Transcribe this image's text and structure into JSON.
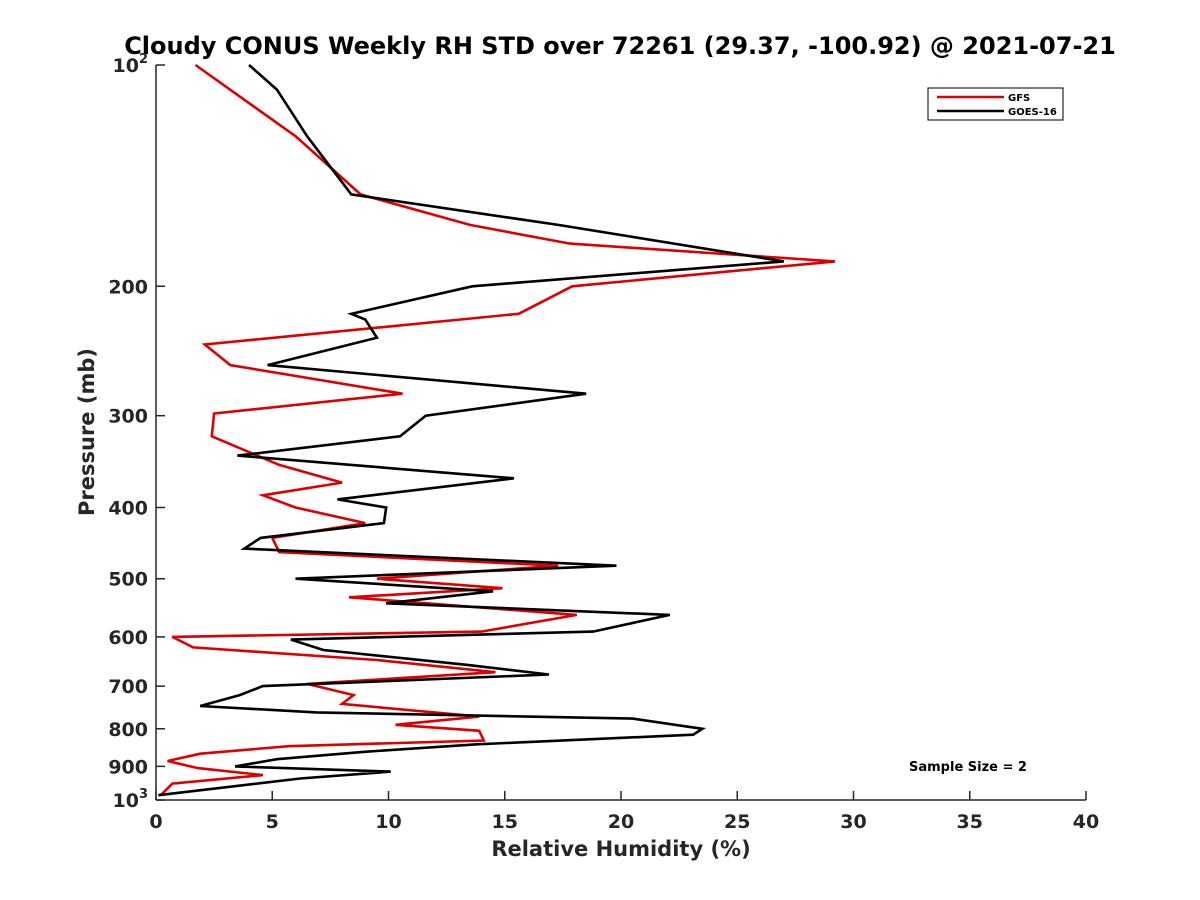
{
  "chart_data": {
    "type": "line",
    "title": "Cloudy CONUS Weekly RH STD over 72261 (29.37, -100.92) @ 2021-07-21",
    "xlabel": "Relative Humidity (%)",
    "ylabel": "Pressure (mb)",
    "xlim": [
      0,
      40
    ],
    "ylim": [
      100,
      1000
    ],
    "y_scale": "log",
    "y_reversed": true,
    "grid": false,
    "legend_position": "top-right",
    "x_ticks": [
      "0",
      "5",
      "10",
      "15",
      "20",
      "25",
      "30",
      "35",
      "40"
    ],
    "y_ticks": [
      {
        "base": "10",
        "exp": "2"
      },
      {
        "text": "200"
      },
      {
        "text": "300"
      },
      {
        "text": "400"
      },
      {
        "text": "500"
      },
      {
        "text": "600"
      },
      {
        "text": "700"
      },
      {
        "text": "800"
      },
      {
        "text": "900"
      },
      {
        "base": "10",
        "exp": "3"
      }
    ],
    "annotation": "Sample Size = 2",
    "series": [
      {
        "name": "GFS",
        "color": "#dd0000",
        "x": [
          1.7,
          6.0,
          8.8,
          13.5,
          17.8,
          29.2,
          17.9,
          15.6,
          2.1,
          3.2,
          10.6,
          2.5,
          2.4,
          5.3,
          8.0,
          4.6,
          6.0,
          9.0,
          5.0,
          5.3,
          17.3,
          9.5,
          14.9,
          8.3,
          18.1,
          14.0,
          0.7,
          1.6,
          9.5,
          14.6,
          6.5,
          8.5,
          8.0,
          13.9,
          10.3,
          13.9,
          14.1,
          5.7,
          1.9,
          0.5,
          1.8,
          4.6,
          0.7,
          0.2
        ],
        "y": [
          100,
          125,
          150,
          165,
          175,
          185,
          200,
          218,
          240,
          256,
          280,
          298,
          320,
          350,
          370,
          385,
          400,
          420,
          440,
          460,
          480,
          500,
          515,
          530,
          560,
          590,
          600,
          620,
          645,
          670,
          695,
          720,
          740,
          770,
          790,
          805,
          830,
          845,
          865,
          885,
          905,
          925,
          950,
          985
        ]
      },
      {
        "name": "GOES-16",
        "color": "#000000",
        "x": [
          4.0,
          5.2,
          6.5,
          8.4,
          17.3,
          27.0,
          13.6,
          8.4,
          9.0,
          9.5,
          4.8,
          18.5,
          11.6,
          10.5,
          3.5,
          15.4,
          7.8,
          9.9,
          9.8,
          4.5,
          3.8,
          19.8,
          6.0,
          14.5,
          9.9,
          22.1,
          18.8,
          5.8,
          7.2,
          13.4,
          16.9,
          4.6,
          3.6,
          1.9,
          6.9,
          20.5,
          23.5,
          23.1,
          13.8,
          8.9,
          5.2,
          3.4,
          10.1,
          6.2,
          0.1
        ],
        "y": [
          100,
          108,
          125,
          150,
          165,
          185,
          200,
          218,
          222,
          235,
          256,
          280,
          300,
          320,
          340,
          365,
          390,
          400,
          420,
          440,
          455,
          480,
          500,
          520,
          540,
          560,
          590,
          605,
          625,
          655,
          675,
          700,
          720,
          745,
          760,
          775,
          800,
          815,
          840,
          860,
          880,
          900,
          915,
          935,
          985
        ]
      }
    ]
  }
}
